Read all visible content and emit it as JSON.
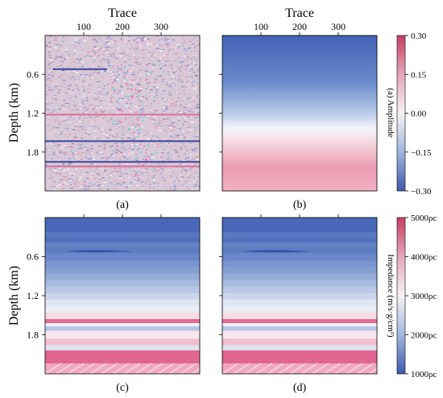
{
  "chart_data": [
    {
      "panel_label": "(a)",
      "type": "heatmap",
      "content": "noisy seismic amplitude section",
      "xlabel": "Trace",
      "ylabel": "Depth (km)",
      "x_ticks": [
        100,
        200,
        300
      ],
      "y_ticks": [
        0.6,
        1.2,
        1.8
      ],
      "xlim": [
        0,
        400
      ],
      "ylim": [
        0,
        2.4
      ],
      "colorbar": "amplitude",
      "reflectors": [
        {
          "depth_km": 0.52,
          "trace_start": 20,
          "trace_end": 160,
          "polarity": "negative"
        },
        {
          "depth_km": 1.63,
          "trace_start": 0,
          "trace_end": 400,
          "polarity": "negative"
        },
        {
          "depth_km": 1.95,
          "trace_start": 0,
          "trace_end": 400,
          "polarity": "negative"
        },
        {
          "depth_km": 1.22,
          "trace_start": 0,
          "trace_end": 400,
          "polarity": "positive"
        },
        {
          "depth_km": 2.02,
          "trace_start": 0,
          "trace_end": 400,
          "polarity": "positive"
        }
      ]
    },
    {
      "panel_label": "(b)",
      "type": "heatmap",
      "content": "smooth background model",
      "xlabel": "Trace",
      "x_ticks": [
        100,
        200,
        300
      ],
      "xlim": [
        0,
        400
      ],
      "ylim": [
        0,
        2.4
      ],
      "colorbar": "amplitude"
    },
    {
      "panel_label": "(c)",
      "type": "heatmap",
      "content": "layered impedance model",
      "ylabel": "Depth (km)",
      "y_ticks": [
        0.6,
        1.2,
        1.8
      ],
      "xlim": [
        0,
        400
      ],
      "ylim": [
        0,
        2.4
      ],
      "colorbar": "impedance"
    },
    {
      "panel_label": "(d)",
      "type": "heatmap",
      "content": "layered impedance model",
      "xlim": [
        0,
        400
      ],
      "ylim": [
        0,
        2.4
      ],
      "colorbar": "impedance"
    }
  ],
  "colorbars": {
    "amplitude": {
      "label": "(a) Amplitude",
      "ticks": [
        "0.30",
        "0.15",
        "0.00",
        "−0.15",
        "−0.30"
      ],
      "values": [
        0.3,
        0.15,
        0.0,
        -0.15,
        -0.3
      ],
      "range": [
        -0.3,
        0.3
      ]
    },
    "impedance": {
      "label": "Impedance (m/s·g/cm³)",
      "ticks": [
        "5000ρc",
        "4000ρc",
        "3000ρc",
        "2000ρc",
        "1000ρc"
      ],
      "values": [
        5000,
        4000,
        3000,
        2000,
        1000
      ],
      "range": [
        1000,
        5000
      ]
    }
  },
  "colors": {
    "low": "#3b4cc0",
    "mid": "#f7f7f7",
    "high": "#d0406a"
  }
}
